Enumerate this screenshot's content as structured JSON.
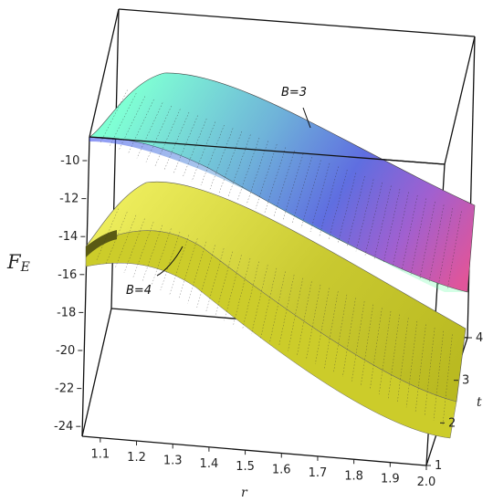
{
  "chart_data": {
    "type": "surface3d",
    "axes": {
      "x": {
        "label": "r",
        "range": [
          1.05,
          2.0
        ],
        "ticks": [
          "1.1",
          "1.2",
          "1.3",
          "1.4",
          "1.5",
          "1.6",
          "1.7",
          "1.8",
          "1.9",
          "2.0"
        ]
      },
      "y": {
        "label": "t",
        "range": [
          1,
          4
        ],
        "ticks": [
          "1",
          "2",
          "3",
          "4"
        ]
      },
      "z": {
        "label": "F",
        "label_sub": "E",
        "range": [
          -25,
          -8
        ],
        "ticks": [
          "-10",
          "-12",
          "-14",
          "-16",
          "-18",
          "-20",
          "-22",
          "-24"
        ]
      }
    },
    "series": [
      {
        "name": "B=3",
        "colormap": [
          "#7fffd4",
          "#6fb3d9",
          "#5f6ee0",
          "#a060d0",
          "#e0559a"
        ],
        "r": [
          1.05,
          1.1,
          1.2,
          1.3,
          1.4,
          1.5,
          1.6,
          1.7,
          1.8,
          1.9,
          2.0
        ],
        "F_at_t1": [
          -10.0,
          -9.5,
          -8.7,
          -8.6,
          -9.0,
          -9.7,
          -10.6,
          -11.5,
          -12.4,
          -13.3,
          -14.2
        ],
        "F_at_t4": [
          -17.0,
          -16.5,
          -15.6,
          -15.5,
          -15.9,
          -16.7,
          -17.5,
          -18.4,
          -19.3,
          -20.2,
          -21.0
        ]
      },
      {
        "name": "B=4",
        "colormap": [
          "#e8e84a",
          "#b8b820"
        ],
        "r": [
          1.05,
          1.1,
          1.2,
          1.3,
          1.4,
          1.5,
          1.6,
          1.7,
          1.8,
          1.9,
          2.0
        ],
        "F_at_t1": [
          -15.2,
          -14.0,
          -12.6,
          -12.4,
          -12.9,
          -13.8,
          -14.8,
          -15.9,
          -17.0,
          -18.1,
          -19.1
        ],
        "F_at_t4": [
          -23.8,
          -22.8,
          -21.5,
          -21.2,
          -21.7,
          -22.5,
          -23.5,
          -24.4,
          -25.2,
          -25.8,
          -26.3
        ]
      }
    ],
    "annotations": [
      {
        "text": "B=3",
        "series": "B=3"
      },
      {
        "text": "B=4",
        "series": "B=4"
      }
    ]
  }
}
